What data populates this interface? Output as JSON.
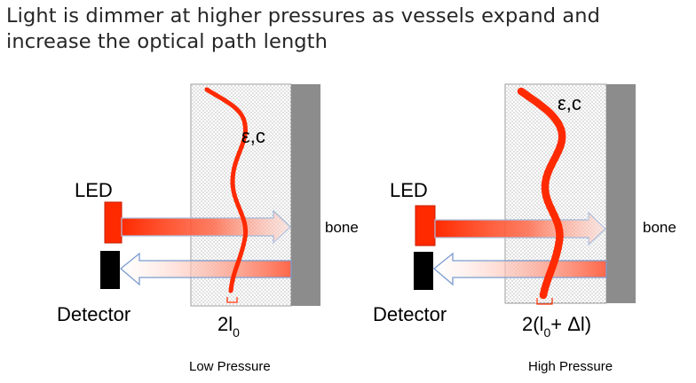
{
  "title": {
    "line1": "Light is dimmer at higher pressures as vessels expand and",
    "line2": "increase the optical path length"
  },
  "colors": {
    "vessel": "#ff2a00",
    "led": "#ff2a00",
    "detector": "#000000",
    "bone": "#8c8c8c",
    "tissue_dots": "#555555",
    "return_arrow_outline": "#7a9ccf",
    "emit_arrow_outline": "#9fb7dc"
  },
  "panels": [
    {
      "led_label": "LED",
      "detector_label": "Detector",
      "bone_label": "bone",
      "vessel_label": "ε,c",
      "path_base": "2l",
      "path_subscript": "0",
      "path_suffix": "",
      "caption": "Low Pressure"
    },
    {
      "led_label": "LED",
      "detector_label": "Detector",
      "bone_label": "bone",
      "vessel_label": "ε,c",
      "path_base": "2(l",
      "path_subscript": "0",
      "path_suffix": "+ Δl)",
      "caption": "High Pressure"
    }
  ]
}
